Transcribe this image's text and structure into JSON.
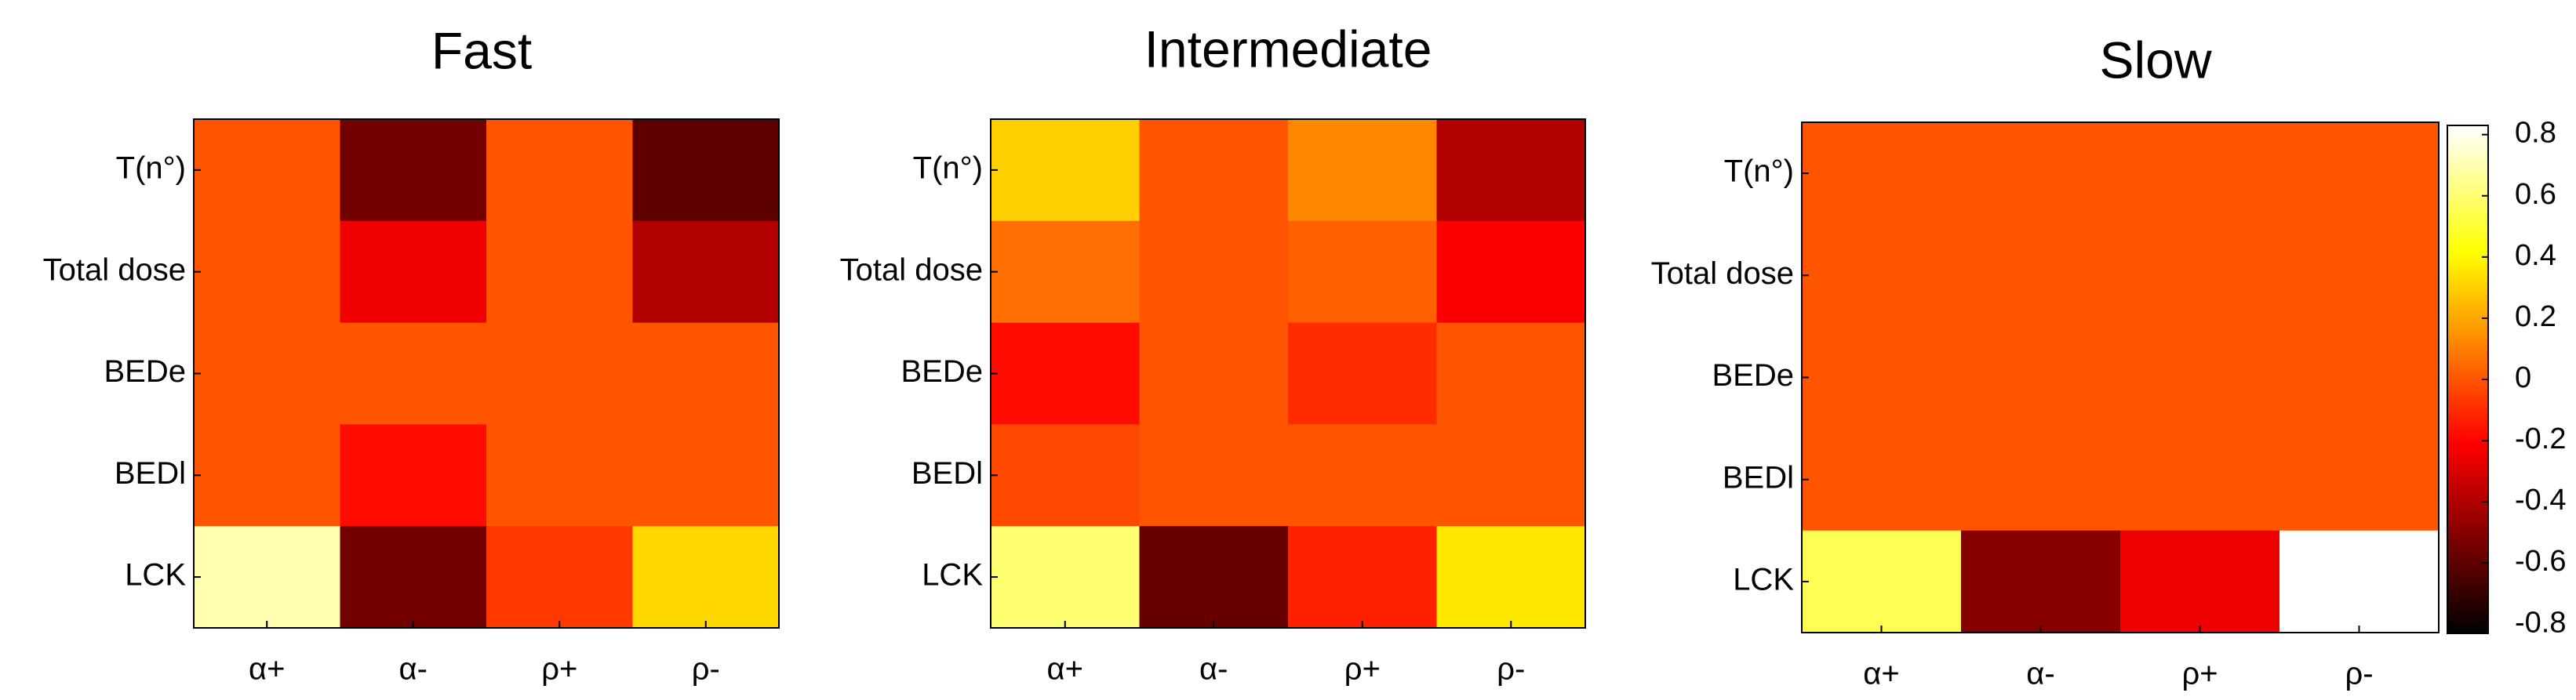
{
  "chart_data": [
    {
      "type": "heatmap",
      "title": "Fast",
      "rows": [
        "T(n°)",
        "Total dose",
        "BEDe",
        "BEDl",
        "LCK"
      ],
      "columns": [
        "α+",
        "α-",
        "ρ+",
        "ρ-"
      ],
      "values": [
        [
          0.0,
          -0.55,
          0.0,
          -0.6
        ],
        [
          0.0,
          -0.25,
          0.0,
          -0.4
        ],
        [
          0.0,
          0.0,
          0.0,
          0.0
        ],
        [
          0.0,
          -0.18,
          0.0,
          0.0
        ],
        [
          0.7,
          -0.55,
          -0.07,
          0.32
        ]
      ]
    },
    {
      "type": "heatmap",
      "title": "Intermediate",
      "rows": [
        "T(n°)",
        "Total dose",
        "BEDe",
        "BEDl",
        "LCK"
      ],
      "columns": [
        "α+",
        "α-",
        "ρ+",
        "ρ-"
      ],
      "values": [
        [
          0.3,
          0.0,
          0.12,
          -0.4
        ],
        [
          0.06,
          0.0,
          0.03,
          -0.22
        ],
        [
          -0.18,
          0.0,
          -0.1,
          0.0
        ],
        [
          -0.03,
          0.0,
          0.0,
          0.0
        ],
        [
          0.6,
          -0.58,
          -0.13,
          0.36
        ]
      ]
    },
    {
      "type": "heatmap",
      "title": "Slow",
      "rows": [
        "T(n°)",
        "Total dose",
        "BEDe",
        "BEDl",
        "LCK"
      ],
      "columns": [
        "α+",
        "α-",
        "ρ+",
        "ρ-"
      ],
      "values": [
        [
          0.0,
          0.0,
          0.0,
          0.0
        ],
        [
          0.0,
          0.0,
          0.0,
          0.0
        ],
        [
          0.0,
          0.0,
          0.0,
          0.0
        ],
        [
          0.0,
          0.0,
          0.0,
          0.0
        ],
        [
          0.55,
          -0.5,
          -0.25,
          0.83
        ]
      ]
    }
  ],
  "colorbar": {
    "colormap": "hot",
    "range": [
      -0.83,
      0.83
    ],
    "ticks": [
      0.8,
      0.6,
      0.4,
      0.2,
      0,
      -0.2,
      -0.4,
      -0.6,
      -0.8
    ],
    "tick_labels": [
      "0.8",
      "0.6",
      "0.4",
      "0.2",
      "0",
      "-0.2",
      "-0.4",
      "-0.6",
      "-0.8"
    ]
  }
}
